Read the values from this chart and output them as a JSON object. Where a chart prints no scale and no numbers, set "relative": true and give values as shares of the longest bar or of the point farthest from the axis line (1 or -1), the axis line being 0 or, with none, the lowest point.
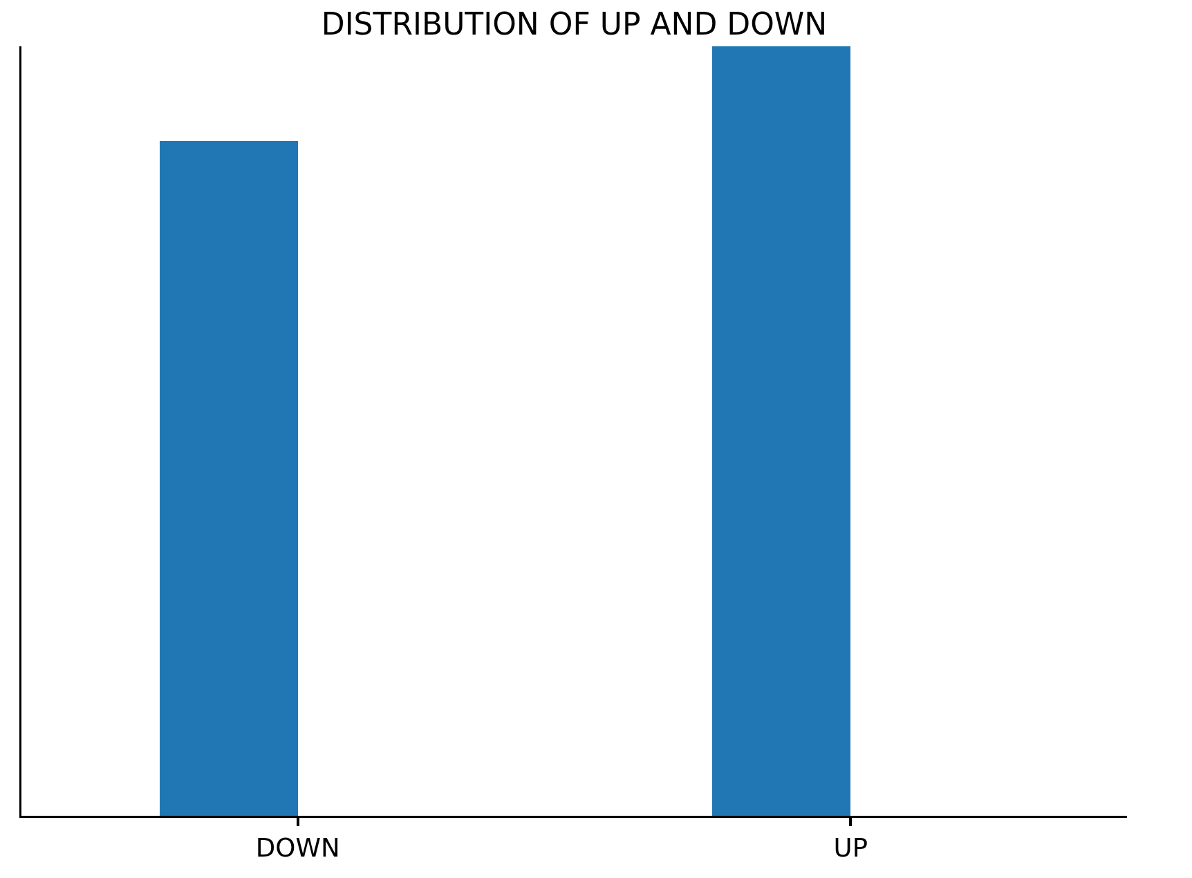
{
  "chart_data": {
    "type": "bar",
    "title": "DISTRIBUTION OF UP AND DOWN",
    "categories": [
      "DOWN",
      "UP"
    ],
    "values": [
      0.877,
      1
    ],
    "color": "#2077b4",
    "relative": true,
    "legend": false
  }
}
